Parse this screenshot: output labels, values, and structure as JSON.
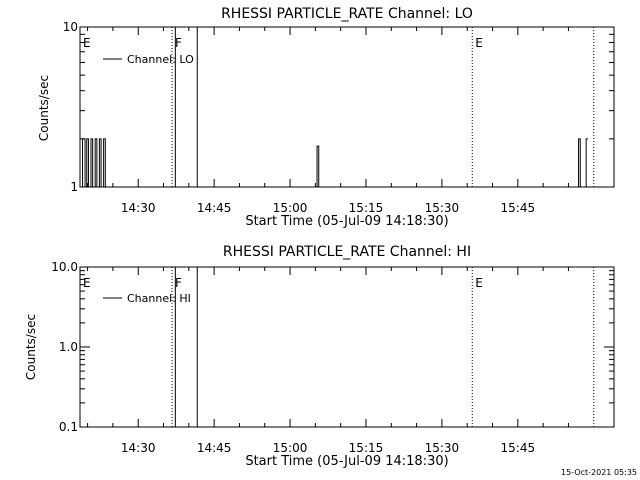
{
  "footer": {
    "timestamp": "15-Oct-2021 05:35"
  },
  "colors": {
    "background": "#ffffff",
    "foreground": "#000000"
  },
  "chart_data": [
    {
      "type": "line",
      "title": "RHESSI PARTICLE_RATE Channel: LO",
      "xlabel": "Start Time (05-Jul-09 14:18:30)",
      "ylabel": "Counts/sec",
      "y_scale": "log",
      "ylim": [
        1,
        10
      ],
      "y_tick_labels": [
        "1",
        "10"
      ],
      "xlim": [
        "14:18:30",
        "16:04:00"
      ],
      "x_tick_labels": [
        "14:30",
        "14:45",
        "15:00",
        "15:15",
        "15:30",
        "15:45"
      ],
      "grid": false,
      "legend": {
        "position": "top-left",
        "entries": [
          "Channel: LO"
        ]
      },
      "series": [
        {
          "name": "Channel: LO",
          "points": [
            [
              "14:18:30",
              1
            ],
            [
              "14:19:00",
              2
            ],
            [
              "14:19:30",
              1
            ],
            [
              "14:19:50",
              2
            ],
            [
              "14:20:10",
              1
            ],
            [
              "14:20:40",
              2
            ],
            [
              "14:21:00",
              1
            ],
            [
              "14:21:30",
              2
            ],
            [
              "14:21:50",
              1
            ],
            [
              "14:22:20",
              2
            ],
            [
              "14:22:40",
              1
            ],
            [
              "14:23:10",
              2
            ],
            [
              "14:23:30",
              1
            ],
            [
              "15:05:00",
              1
            ],
            [
              "15:05:20",
              1.8
            ],
            [
              "15:05:40",
              1
            ],
            [
              "15:56:40",
              1
            ],
            [
              "15:57:00",
              2
            ],
            [
              "15:57:20",
              1
            ],
            [
              "15:58:10",
              1
            ],
            [
              "15:58:30",
              2
            ],
            [
              "15:58:50",
              2
            ]
          ]
        }
      ],
      "annotations": [
        {
          "label": "E",
          "time": "14:18:30",
          "style": "marker"
        },
        {
          "label": "F",
          "time": "14:36:40",
          "style": "dotted"
        },
        {
          "label": "",
          "time": "14:37:20",
          "style": "solid"
        },
        {
          "label": "",
          "time": "14:41:40",
          "style": "solid"
        },
        {
          "label": "E",
          "time": "15:36:00",
          "style": "dotted"
        },
        {
          "label": "",
          "time": "16:00:00",
          "style": "dotted"
        }
      ]
    },
    {
      "type": "line",
      "title": "RHESSI PARTICLE_RATE Channel: HI",
      "xlabel": "Start Time (05-Jul-09 14:18:30)",
      "ylabel": "Counts/sec",
      "y_scale": "log",
      "ylim": [
        0.1,
        10
      ],
      "y_tick_labels": [
        "0.1",
        "1.0",
        "10.0"
      ],
      "xlim": [
        "14:18:30",
        "16:04:00"
      ],
      "x_tick_labels": [
        "14:30",
        "14:45",
        "15:00",
        "15:15",
        "15:30",
        "15:45"
      ],
      "grid": false,
      "legend": {
        "position": "top-left",
        "entries": [
          "Channel: HI"
        ]
      },
      "series": [
        {
          "name": "Channel: HI",
          "points": []
        }
      ],
      "annotations": [
        {
          "label": "E",
          "time": "14:18:30",
          "style": "marker"
        },
        {
          "label": "F",
          "time": "14:36:40",
          "style": "dotted"
        },
        {
          "label": "",
          "time": "14:37:20",
          "style": "solid"
        },
        {
          "label": "",
          "time": "14:41:40",
          "style": "solid"
        },
        {
          "label": "E",
          "time": "15:36:00",
          "style": "dotted"
        },
        {
          "label": "",
          "time": "16:00:00",
          "style": "dotted"
        }
      ]
    }
  ]
}
